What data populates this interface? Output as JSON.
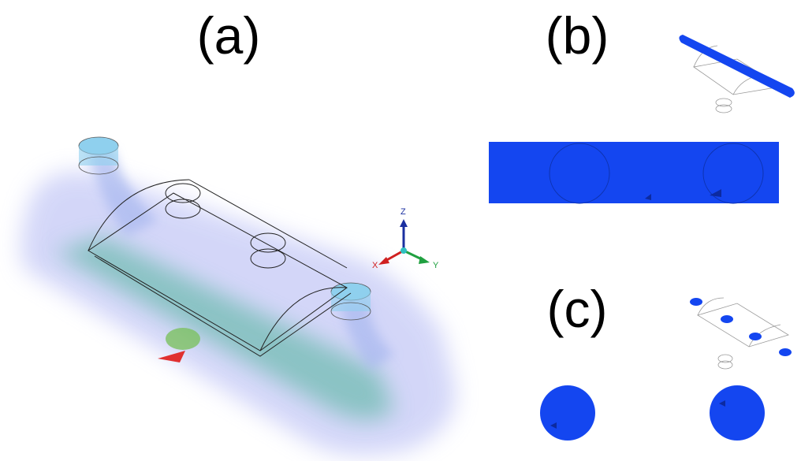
{
  "panels": {
    "a": {
      "label": "(a)"
    },
    "b": {
      "label": "(b)"
    },
    "c": {
      "label": "(c)"
    }
  },
  "axes_triad": {
    "z": "Z",
    "x": "X",
    "y": "Y"
  }
}
